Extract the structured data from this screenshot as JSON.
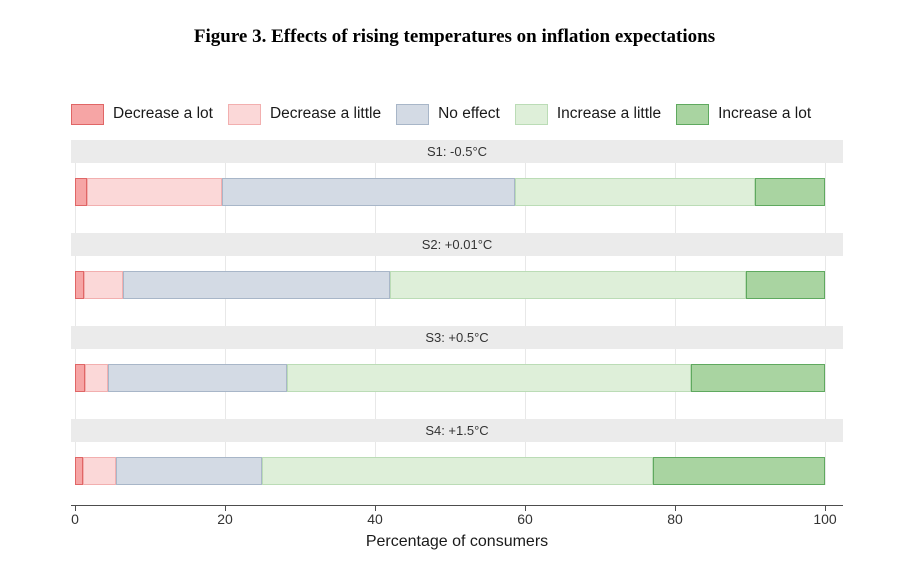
{
  "title": "Figure 3. Effects of rising temperatures on inflation expectations",
  "xaxis": {
    "label": "Percentage of consumers",
    "ticks": [
      "0",
      "20",
      "40",
      "60",
      "80",
      "100"
    ]
  },
  "chart_data": {
    "type": "bar",
    "stacked": true,
    "orientation": "horizontal",
    "title": "Figure 3. Effects of rising temperatures on inflation expectations",
    "xlabel": "Percentage of consumers",
    "xlim": [
      0,
      100
    ],
    "xticks": [
      0,
      20,
      40,
      60,
      80,
      100
    ],
    "grid": "vertical-light",
    "legend_position": "top",
    "categories": [
      "S1: -0.5°C",
      "S2: +0.01°C",
      "S3: +0.5°C",
      "S4: +1.5°C"
    ],
    "series": [
      {
        "name": "Decrease a lot",
        "values": [
          1.6,
          1.2,
          1.3,
          1.0
        ],
        "fill": "#F6A5A5",
        "stroke": "#E06666"
      },
      {
        "name": "Decrease a little",
        "values": [
          18.0,
          5.2,
          3.1,
          4.4
        ],
        "fill": "#FBD8D8",
        "stroke": "#F2AFAF"
      },
      {
        "name": "No effect",
        "values": [
          39.0,
          35.6,
          23.8,
          19.5
        ],
        "fill": "#D3DAE4",
        "stroke": "#A8B6C8"
      },
      {
        "name": "Increase a little",
        "values": [
          32.1,
          47.5,
          53.9,
          52.1
        ],
        "fill": "#DEEFD9",
        "stroke": "#BBDCB6"
      },
      {
        "name": "Increase a lot",
        "values": [
          9.3,
          10.5,
          17.9,
          23.0
        ],
        "fill": "#A9D4A1",
        "stroke": "#5FA95F"
      }
    ]
  }
}
